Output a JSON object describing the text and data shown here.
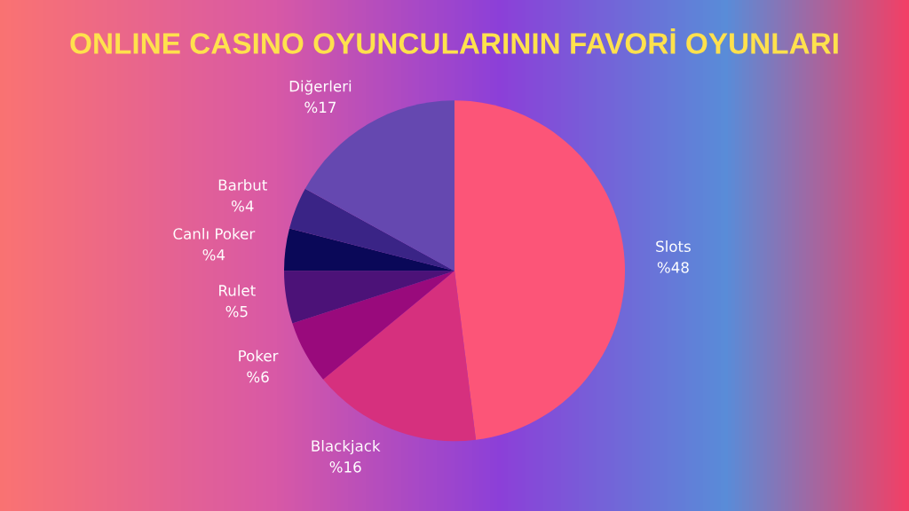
{
  "chart_data": {
    "type": "pie",
    "title": "ONLINE CASINO OYUNCULARININ FAVORİ OYUNLARI",
    "categories": [
      "Slots",
      "Blackjack",
      "Poker",
      "Rulet",
      "Canlı Poker",
      "Barbut",
      "Diğerleri"
    ],
    "values": [
      48,
      16,
      6,
      5,
      4,
      4,
      17
    ],
    "value_labels": [
      "%48",
      "%16",
      "%6",
      "%5",
      "%4",
      "%4",
      "%17"
    ],
    "colors": [
      "#fc5578",
      "#d6307e",
      "#990a7c",
      "#4c1278",
      "#0a0858",
      "#3a2486",
      "#6548b0"
    ]
  }
}
